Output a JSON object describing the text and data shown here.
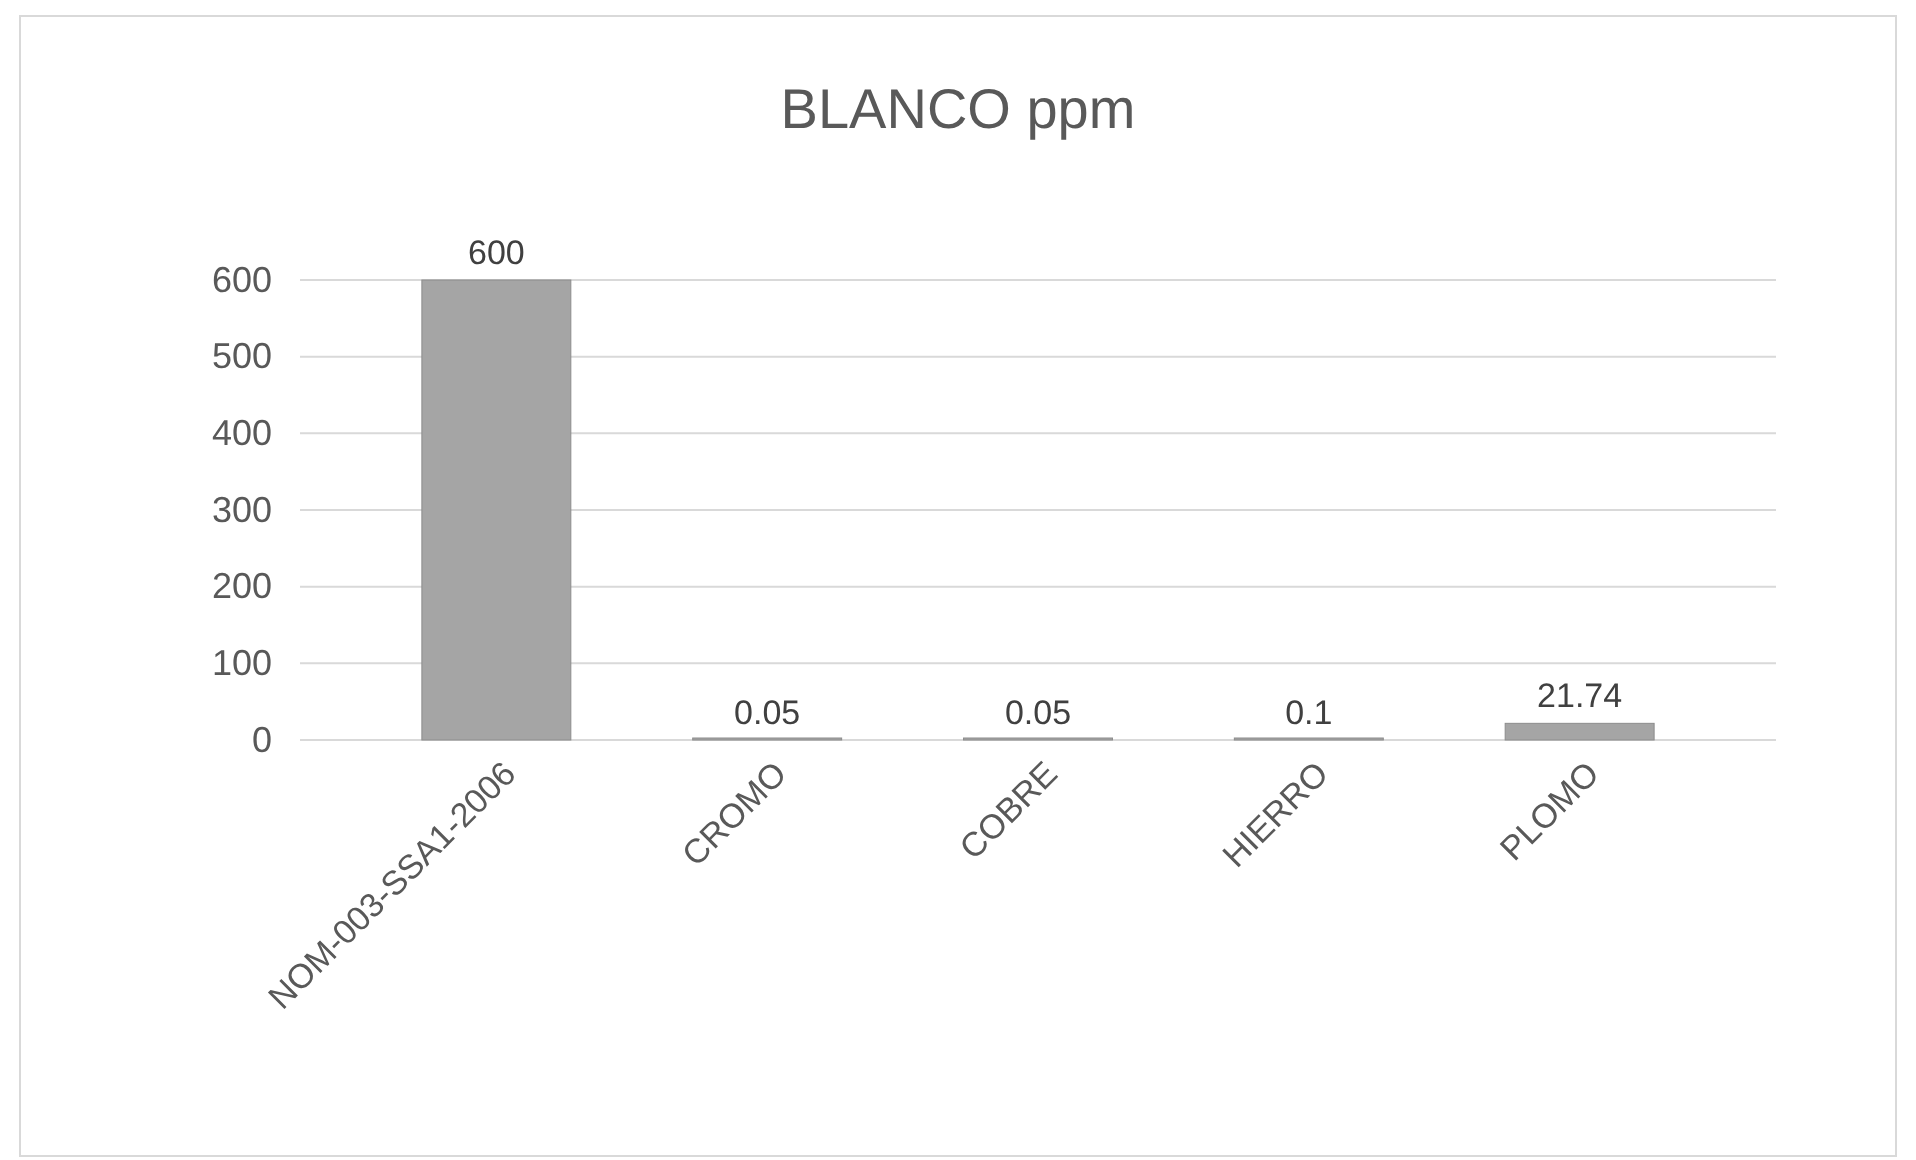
{
  "chart_data": {
    "type": "bar",
    "title": "BLANCO ppm",
    "categories": [
      "NOM-003-SSA1-2006",
      "CROMO",
      "COBRE",
      "HIERRO",
      "PLOMO"
    ],
    "values": [
      600,
      0.05,
      0.05,
      0.1,
      21.74
    ],
    "color": "#a5a5a5",
    "ylim": [
      0,
      600
    ],
    "yticks": [
      0,
      100,
      200,
      300,
      400,
      500,
      600
    ],
    "grid": "y",
    "data_labels": true
  }
}
